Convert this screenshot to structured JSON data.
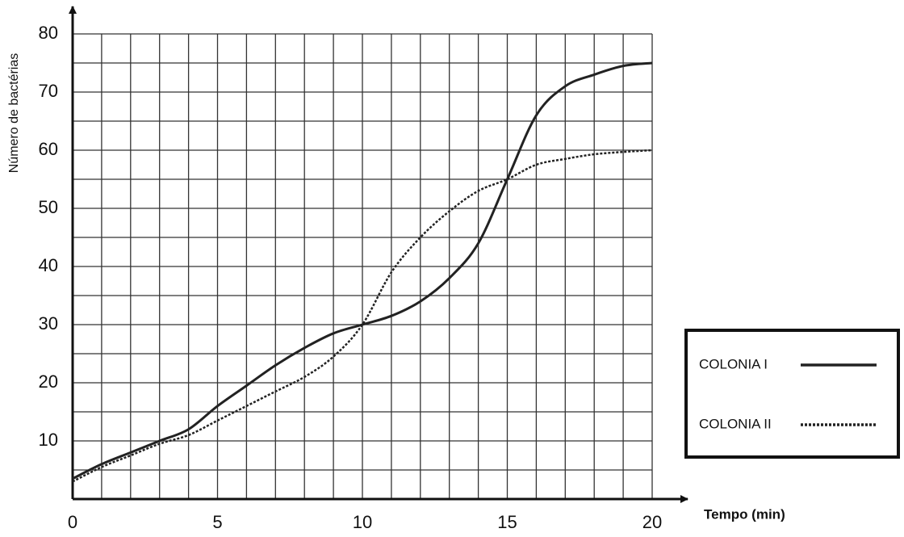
{
  "chart_data": {
    "type": "line",
    "ylabel": "Número de bactérias",
    "xlabel": "Tempo (min)",
    "x": [
      0,
      1,
      2,
      3,
      4,
      5,
      6,
      7,
      8,
      9,
      10,
      11,
      12,
      13,
      14,
      15,
      16,
      17,
      18,
      19,
      20
    ],
    "series": [
      {
        "name": "COLONIA I",
        "color": "#222222",
        "dash": "solid",
        "values": [
          3.5,
          6,
          8,
          10,
          12,
          16,
          19.5,
          23,
          26,
          28.5,
          30,
          31.5,
          34,
          38,
          44,
          55,
          66,
          71,
          73,
          74.5,
          75
        ]
      },
      {
        "name": "COLONIA II",
        "color": "#222222",
        "dash": "dotted",
        "values": [
          3,
          5.5,
          7.5,
          9.5,
          11,
          13.5,
          16,
          18.5,
          21,
          24.5,
          30,
          39,
          45,
          49.5,
          53,
          55,
          57.5,
          58.5,
          59.3,
          59.7,
          60
        ]
      }
    ],
    "xlim": [
      0,
      20
    ],
    "xticks": [
      0,
      5,
      10,
      15,
      20
    ],
    "ylim": [
      0,
      80
    ],
    "yticks": [
      10,
      20,
      30,
      40,
      50,
      60,
      70,
      80
    ],
    "xgrid": [
      1,
      2,
      3,
      4,
      5,
      6,
      7,
      8,
      9,
      10,
      11,
      12,
      13,
      14,
      15,
      16,
      17,
      18,
      19,
      20
    ],
    "ygrid": [
      5,
      10,
      15,
      20,
      25,
      30,
      35,
      40,
      45,
      50,
      55,
      60,
      65,
      70,
      75,
      80
    ],
    "grid": true,
    "legend": "right"
  }
}
